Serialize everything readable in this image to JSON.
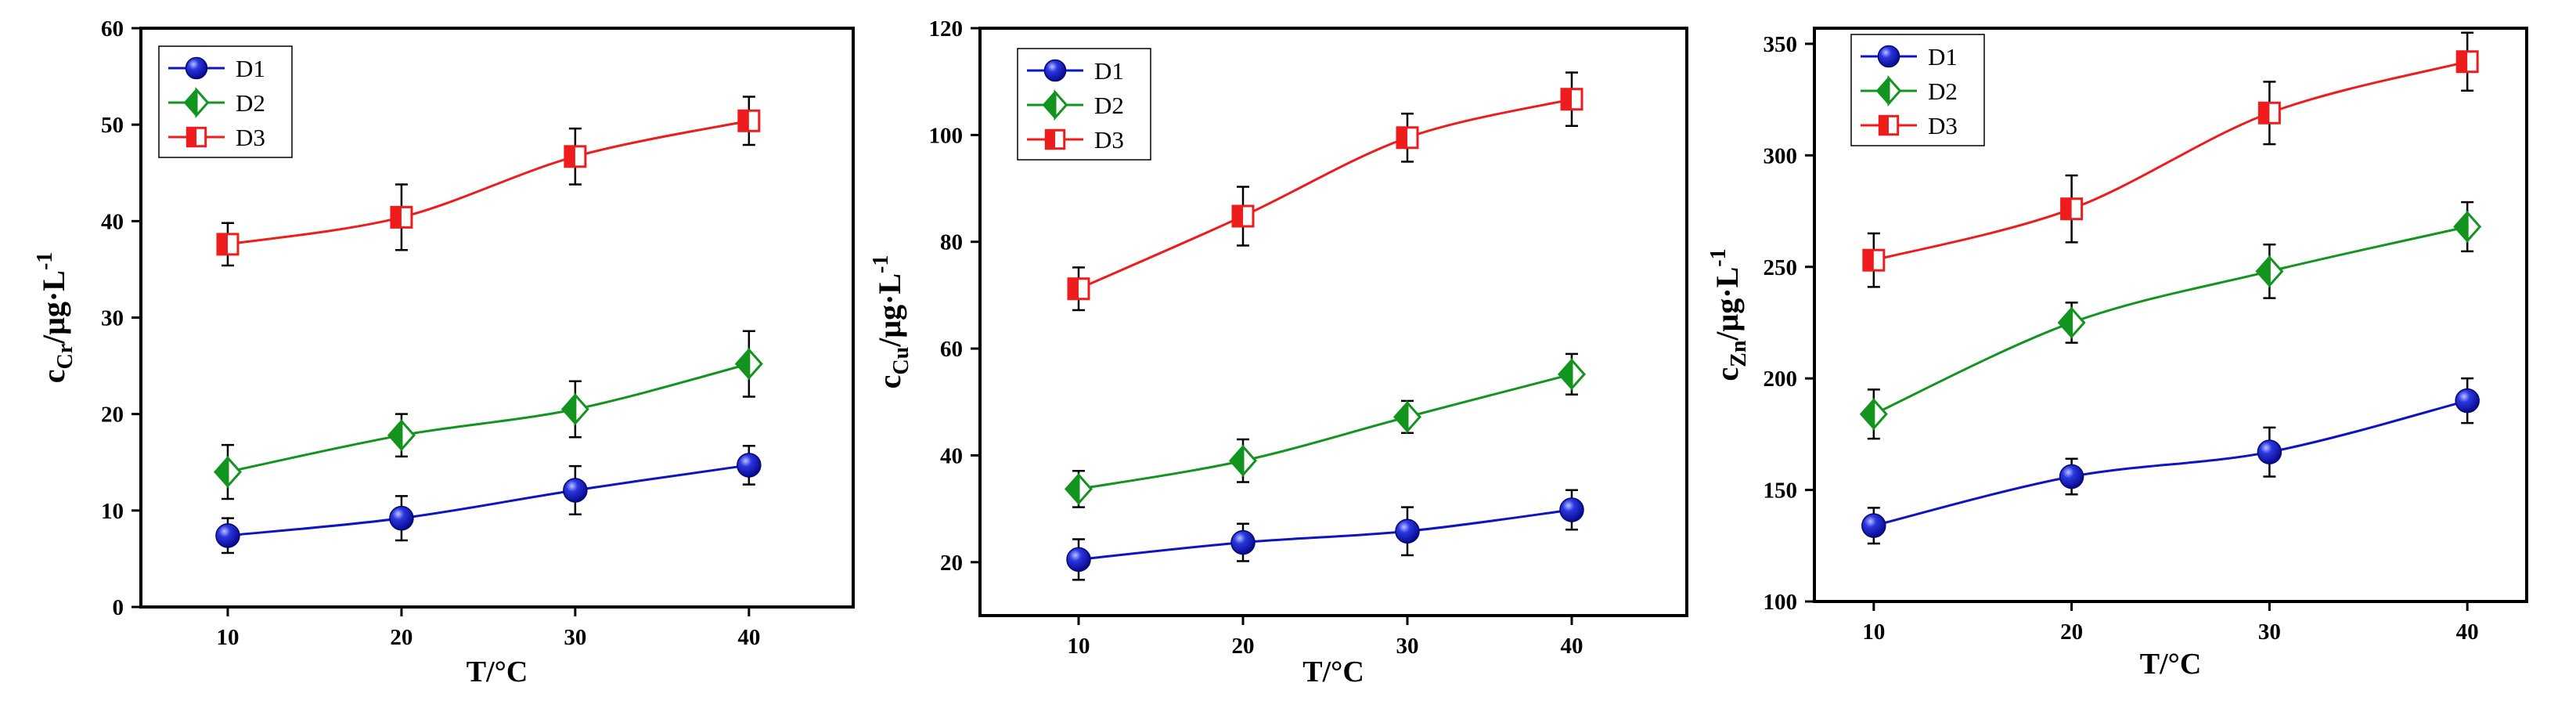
{
  "chart_data": [
    {
      "type": "line",
      "id": "cr",
      "ylabel_main": "c",
      "ylabel_sub": "Cr",
      "ylabel_unit": "/μg·L",
      "ylabel_sup": "-1",
      "xlabel": "T/°C",
      "x": [
        10,
        20,
        30,
        40
      ],
      "xlim": [
        5,
        46
      ],
      "ylim": [
        0,
        60
      ],
      "xticks": [
        "10",
        "20",
        "30",
        "40"
      ],
      "yticks": [
        "0",
        "10",
        "20",
        "30",
        "40",
        "50",
        "60"
      ],
      "series": [
        {
          "name": "D1",
          "values": [
            7.4,
            9.2,
            12.1,
            14.7
          ],
          "err": [
            1.8,
            2.3,
            2.5,
            2.0
          ]
        },
        {
          "name": "D2",
          "values": [
            14.0,
            17.8,
            20.5,
            25.2
          ],
          "err": [
            2.8,
            2.2,
            2.9,
            3.4
          ]
        },
        {
          "name": "D3",
          "values": [
            37.6,
            40.4,
            46.7,
            50.4
          ],
          "err": [
            2.2,
            3.4,
            2.9,
            2.5
          ]
        }
      ]
    },
    {
      "type": "line",
      "id": "cu",
      "ylabel_main": "c",
      "ylabel_sub": "Cu",
      "ylabel_unit": "/μg·L",
      "ylabel_sup": "-1",
      "xlabel": "T/°C",
      "x": [
        10,
        20,
        30,
        40
      ],
      "xlim": [
        4,
        47
      ],
      "ylim": [
        10,
        120
      ],
      "xticks": [
        "10",
        "20",
        "30",
        "40"
      ],
      "yticks": [
        "20",
        "40",
        "60",
        "80",
        "100",
        "120"
      ],
      "series": [
        {
          "name": "D1",
          "values": [
            20.5,
            23.7,
            25.8,
            29.8
          ],
          "err": [
            3.8,
            3.5,
            4.5,
            3.7
          ]
        },
        {
          "name": "D2",
          "values": [
            33.7,
            39.0,
            47.2,
            55.2
          ],
          "err": [
            3.4,
            4.0,
            3.0,
            3.8
          ]
        },
        {
          "name": "D3",
          "values": [
            71.2,
            84.8,
            99.5,
            106.7
          ],
          "err": [
            4.0,
            5.5,
            4.5,
            5.0
          ]
        }
      ]
    },
    {
      "type": "line",
      "id": "zn",
      "ylabel_main": "c",
      "ylabel_sub": "Zn",
      "ylabel_unit": "/μg·L",
      "ylabel_sup": "-1",
      "xlabel": "T/°C",
      "x": [
        10,
        20,
        30,
        40
      ],
      "xlim": [
        7,
        43
      ],
      "ylim": [
        100,
        357
      ],
      "xticks": [
        "10",
        "20",
        "30",
        "40"
      ],
      "yticks": [
        "100",
        "150",
        "200",
        "250",
        "300",
        "350"
      ],
      "series": [
        {
          "name": "D1",
          "values": [
            134,
            156,
            167,
            190
          ],
          "err": [
            8,
            8,
            11,
            10
          ]
        },
        {
          "name": "D2",
          "values": [
            184,
            225,
            248,
            268
          ],
          "err": [
            11,
            9,
            12,
            11
          ]
        },
        {
          "name": "D3",
          "values": [
            253,
            276,
            319,
            342
          ],
          "err": [
            12,
            15,
            14,
            13
          ]
        }
      ]
    }
  ],
  "colors": {
    "D1": "#0d14c4",
    "D2": "#13941e",
    "D3": "#ee1c1c",
    "axis": "#000000"
  }
}
